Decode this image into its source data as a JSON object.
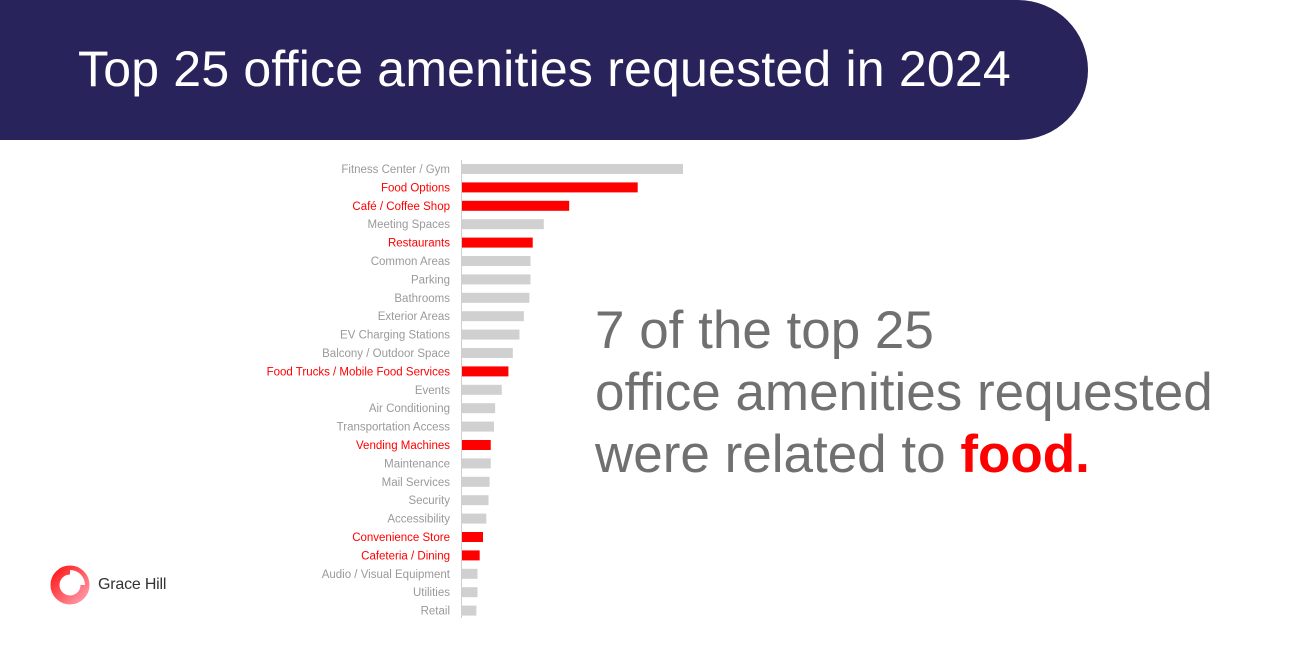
{
  "title": "Top 25 office amenities requested in 2024",
  "tagline": {
    "line1": "7 of the top 25",
    "line2": "office amenities requested",
    "line3_prefix": "were related to ",
    "line3_highlight": "food."
  },
  "brand": {
    "name": "Grace Hill",
    "icon": "grace-hill-logo-icon"
  },
  "colors": {
    "banner": "#29235c",
    "highlight": "#ff0000",
    "bar_default": "#d0d0d0",
    "label_default": "#9a9a9a",
    "tagline_text": "#707070"
  },
  "chart_data": {
    "type": "bar",
    "orientation": "horizontal",
    "title": "Top 25 office amenities requested in 2024",
    "xlabel": "",
    "ylabel": "",
    "xlim": [
      0,
      100
    ],
    "grid": false,
    "legend": "none",
    "categories": [
      "Fitness Center / Gym",
      "Food Options",
      "Café / Coffee Shop",
      "Meeting Spaces",
      "Restaurants",
      "Common Areas",
      "Parking",
      "Bathrooms",
      "Exterior Areas",
      "EV Charging Stations",
      "Balcony / Outdoor Space",
      "Food Trucks / Mobile Food Services",
      "Events",
      "Air Conditioning",
      "Transportation Access",
      "Vending Machines",
      "Maintenance",
      "Mail Services",
      "Security",
      "Accessibility",
      "Convenience Store",
      "Cafeteria / Dining",
      "Audio / Visual Equipment",
      "Utilities",
      "Retail"
    ],
    "values": [
      100,
      79.5,
      48.5,
      37,
      32,
      31,
      31,
      30.5,
      28,
      26,
      23,
      21,
      18,
      15,
      14.5,
      13,
      13,
      12.5,
      12,
      11,
      9.5,
      8,
      7,
      7,
      6.5
    ],
    "food_related": [
      false,
      true,
      true,
      false,
      true,
      false,
      false,
      false,
      false,
      false,
      false,
      true,
      false,
      false,
      false,
      true,
      false,
      false,
      false,
      false,
      true,
      true,
      false,
      false,
      false
    ]
  }
}
